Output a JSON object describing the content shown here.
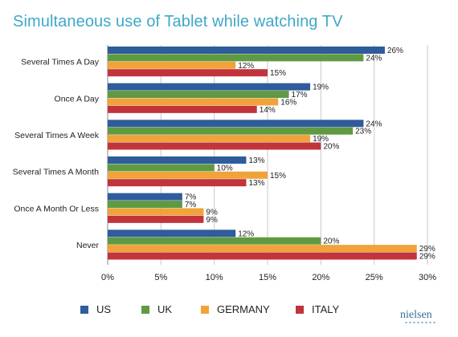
{
  "chart_data": {
    "type": "bar",
    "orientation": "horizontal",
    "title": "Simultaneous use of Tablet while watching TV",
    "categories": [
      "Several Times A Day",
      "Once A Day",
      "Several Times A Week",
      "Several Times A Month",
      "Once A Month Or Less",
      "Never"
    ],
    "series": [
      {
        "name": "US",
        "color": "#2f5c9a",
        "values": [
          26,
          19,
          24,
          13,
          7,
          12
        ]
      },
      {
        "name": "UK",
        "color": "#5f9a43",
        "values": [
          24,
          17,
          23,
          10,
          7,
          20
        ]
      },
      {
        "name": "GERMANY",
        "color": "#f0a33a",
        "values": [
          12,
          16,
          19,
          15,
          9,
          29
        ]
      },
      {
        "name": "ITALY",
        "color": "#c1343b",
        "values": [
          15,
          14,
          20,
          13,
          9,
          29
        ]
      }
    ],
    "xlim": [
      0,
      30
    ],
    "x_ticks": [
      "0%",
      "5%",
      "10%",
      "15%",
      "20%",
      "25%",
      "30%"
    ],
    "value_suffix": "%",
    "grid": "vertical",
    "legend": "bottom"
  },
  "brand": {
    "text": "nielsen"
  }
}
